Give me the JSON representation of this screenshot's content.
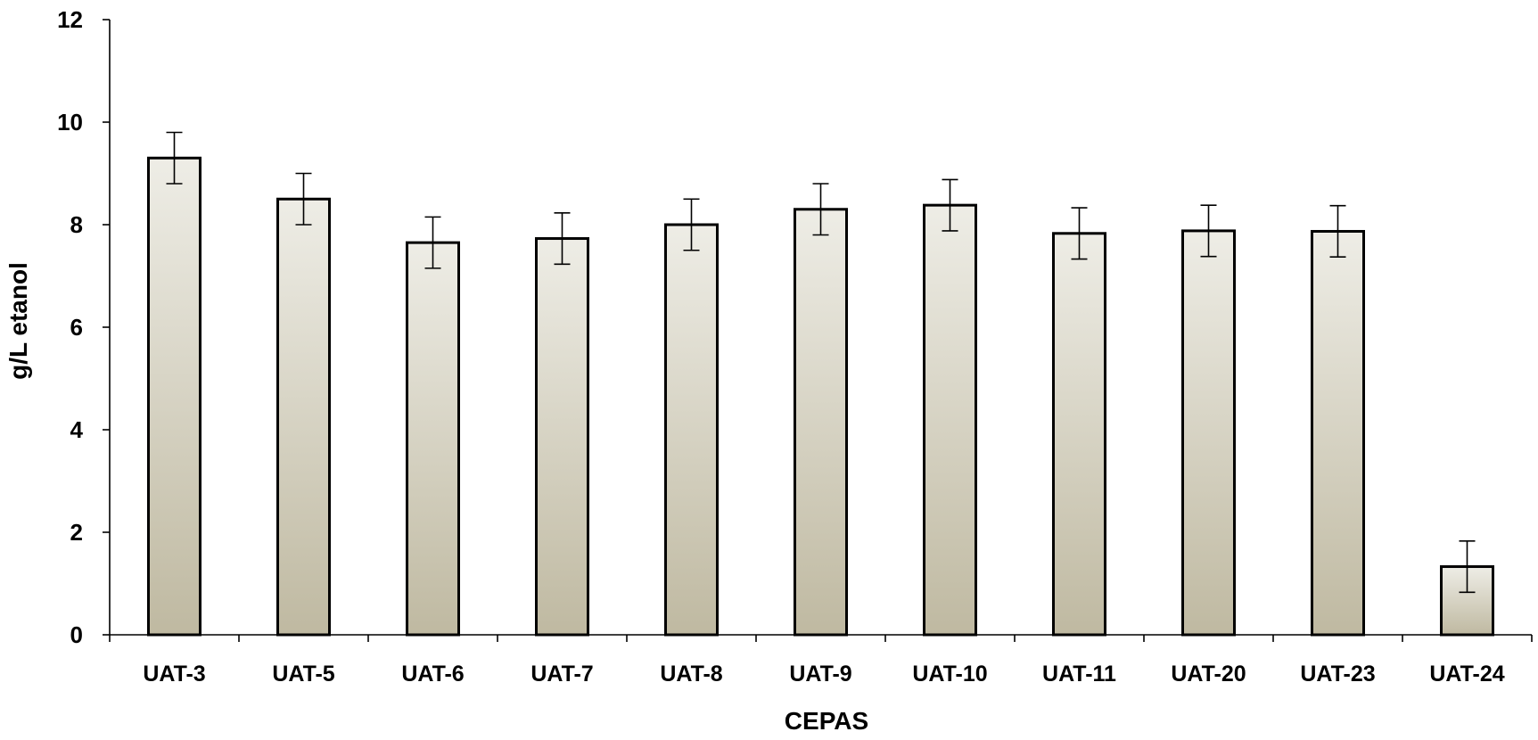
{
  "chart_data": {
    "type": "bar",
    "categories": [
      "UAT-3",
      "UAT-5",
      "UAT-6",
      "UAT-7",
      "UAT-8",
      "UAT-9",
      "UAT-10",
      "UAT-11",
      "UAT-20",
      "UAT-23",
      "UAT-24"
    ],
    "values": [
      9.3,
      8.5,
      7.65,
      7.73,
      8.0,
      8.3,
      8.38,
      7.83,
      7.88,
      7.87,
      1.33
    ],
    "errors": [
      0.5,
      0.5,
      0.5,
      0.5,
      0.5,
      0.5,
      0.5,
      0.5,
      0.5,
      0.5,
      0.5
    ],
    "title": "",
    "xlabel": "CEPAS",
    "ylabel": "g/L etanol",
    "ylim": [
      0,
      12
    ],
    "yticks": [
      "0",
      "2",
      "4",
      "6",
      "8",
      "10",
      "12"
    ],
    "grid": false,
    "legend": "none",
    "colors": {
      "bar_top": "#EEEDE6",
      "bar_bottom": "#BFB9A1",
      "stroke": "#000000"
    }
  }
}
